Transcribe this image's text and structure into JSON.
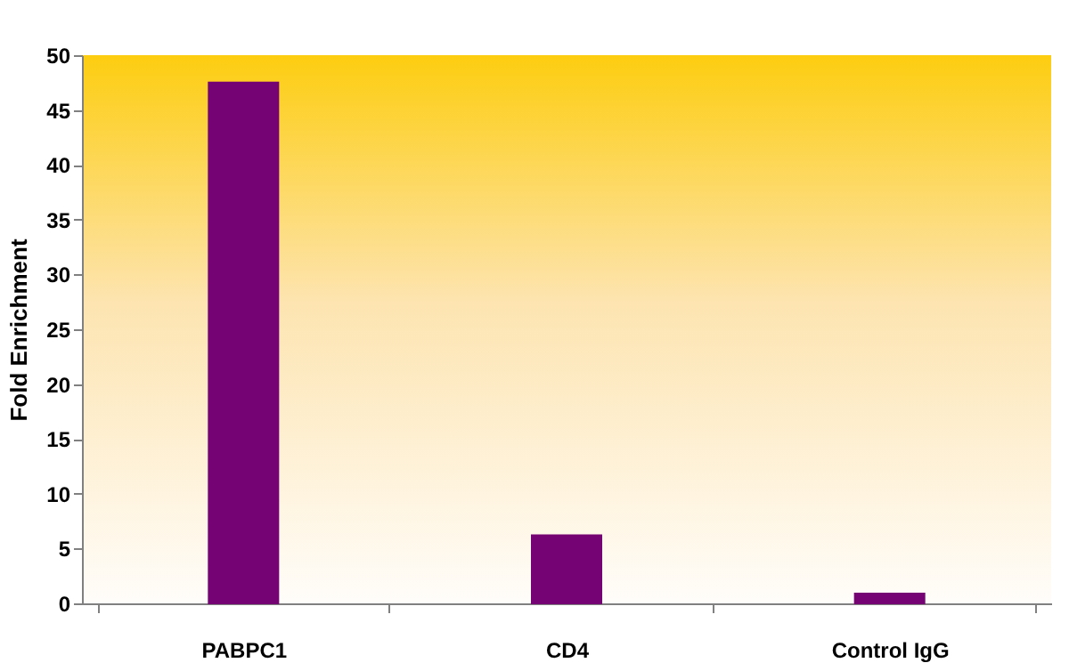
{
  "chart_data": {
    "type": "bar",
    "ylabel": "Fold Enrichment",
    "categories": [
      "PABPC1",
      "CD4",
      "Control IgG"
    ],
    "values": [
      47.5,
      6.2,
      0.9
    ],
    "color": "#760373",
    "ylim": [
      0,
      50
    ],
    "yticks": [
      0,
      5,
      10,
      15,
      20,
      25,
      30,
      35,
      40,
      45,
      50
    ],
    "grid": false
  }
}
